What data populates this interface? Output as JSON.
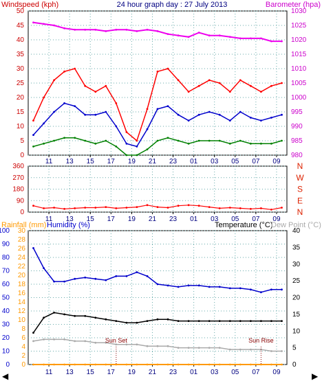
{
  "header": {
    "left": "Windspeed (kph)",
    "center": "24 hour graph day : 27 July 2013",
    "right": "Barometer (hpa)"
  },
  "colors": {
    "wind_max": "#ff0000",
    "wind_avg": "#0000cc",
    "wind_min": "#008000",
    "barometer": "#ee00ee",
    "direction": "#ff0000",
    "compass": "#dd2200",
    "rain": "#ff9900",
    "humidity": "#0000cc",
    "temperature": "#000000",
    "dew_point": "#aaaaaa",
    "sun_marker": "#880000"
  },
  "x_ticks": [
    "11",
    "13",
    "15",
    "17",
    "19",
    "21",
    "23",
    "01",
    "03",
    "05",
    "07",
    "09"
  ],
  "chart_data": [
    {
      "type": "line",
      "name": "wind-and-pressure",
      "ylabel": "Windspeed (kph)",
      "y2label": "Barometer (hpa)",
      "ylim": [
        0,
        50
      ],
      "y_ticks": [
        "0",
        "5",
        "10",
        "15",
        "20",
        "25",
        "30",
        "35",
        "40",
        "45",
        "50"
      ],
      "y2lim": [
        980,
        1030
      ],
      "y2_ticks": [
        "980",
        "985",
        "990",
        "995",
        "1000",
        "1005",
        "1010",
        "1015",
        "1020",
        "1025",
        "1030"
      ],
      "x_hours": [
        9.5,
        10.5,
        11.5,
        12.5,
        13.5,
        14.5,
        15.5,
        16.5,
        17.5,
        18.5,
        19.5,
        20.5,
        21.5,
        22.5,
        23.5,
        24.5,
        25.5,
        26.5,
        27.5,
        28.5,
        29.5,
        30.5,
        31.5,
        32.5,
        33.5
      ],
      "series": [
        {
          "key": "wind_max",
          "values": [
            12,
            20,
            26,
            29,
            30,
            24,
            22,
            24,
            18,
            8,
            5,
            16,
            29,
            30,
            26,
            22,
            24,
            26,
            25,
            22,
            26,
            24,
            22,
            24,
            25
          ]
        },
        {
          "key": "wind_avg",
          "values": [
            7,
            11,
            15,
            18,
            17,
            14,
            14,
            15,
            10,
            4,
            3,
            9,
            16,
            17,
            14,
            12,
            14,
            15,
            14,
            12,
            15,
            13,
            12,
            13,
            14
          ]
        },
        {
          "key": "wind_min",
          "values": [
            3,
            4,
            5,
            6,
            6,
            5,
            4,
            5,
            3,
            0,
            0,
            2,
            5,
            6,
            5,
            4,
            5,
            5,
            5,
            4,
            5,
            4,
            4,
            4,
            5
          ]
        },
        {
          "key": "barometer",
          "axis": "y2",
          "values": [
            1026.0,
            1025.5,
            1025.0,
            1024.0,
            1023.5,
            1023.5,
            1023.5,
            1023.0,
            1023.5,
            1023.5,
            1023.0,
            1023.5,
            1023.0,
            1022.0,
            1021.5,
            1021.0,
            1022.5,
            1021.5,
            1021.5,
            1021.0,
            1020.5,
            1020.5,
            1020.5,
            1019.5,
            1019.5
          ]
        }
      ]
    },
    {
      "type": "line",
      "name": "wind-direction",
      "ylim": [
        0,
        360
      ],
      "y_ticks": [
        "0",
        "90",
        "180",
        "270",
        "360"
      ],
      "compass_labels": [
        "N",
        "W",
        "S",
        "E",
        "N"
      ],
      "x_hours": [
        9.5,
        10.5,
        11.5,
        12.5,
        13.5,
        14.5,
        15.5,
        16.5,
        17.5,
        18.5,
        19.5,
        20.5,
        21.5,
        22.5,
        23.5,
        24.5,
        25.5,
        26.5,
        27.5,
        28.5,
        29.5,
        30.5,
        31.5,
        32.5,
        33.5
      ],
      "values": [
        50,
        30,
        35,
        25,
        30,
        35,
        35,
        40,
        30,
        35,
        40,
        55,
        40,
        35,
        50,
        55,
        50,
        40,
        30,
        35,
        30,
        25,
        30,
        20,
        35
      ]
    },
    {
      "type": "line",
      "name": "humidity-temperature",
      "title_left_rain": "Rainfall (mm)",
      "title_left_hum": "Humidity (%)",
      "title_right_temp": "Temperature (°C)",
      "title_right_dew": "Dew Point (°C)",
      "ylabel": "Humidity (%)",
      "ylim": [
        0,
        100
      ],
      "hum_ticks": [
        "0",
        "10",
        "20",
        "30",
        "40",
        "50",
        "60",
        "70",
        "80",
        "90",
        "100"
      ],
      "rain_ticks": [
        "0",
        "2",
        "4",
        "6",
        "8",
        "10",
        "12",
        "14",
        "16",
        "18",
        "20",
        "22",
        "24",
        "26",
        "28",
        "30"
      ],
      "temp_ticks": [
        "0",
        "5",
        "10",
        "15",
        "20",
        "25",
        "30",
        "35",
        "40"
      ],
      "temp_lim": [
        0,
        40
      ],
      "x_hours": [
        9.5,
        10.5,
        11.5,
        12.5,
        13.5,
        14.5,
        15.5,
        16.5,
        17.5,
        18.5,
        19.5,
        20.5,
        21.5,
        22.5,
        23.5,
        24.5,
        25.5,
        26.5,
        27.5,
        28.5,
        29.5,
        30.5,
        31.5,
        32.5,
        33.5
      ],
      "series": [
        {
          "key": "humidity",
          "values": [
            87,
            72,
            62,
            62,
            64,
            65,
            64,
            63,
            66,
            66,
            69,
            66,
            60,
            59,
            58,
            59,
            59,
            58,
            58,
            57,
            57,
            56,
            54,
            56,
            56
          ]
        },
        {
          "key": "temperature",
          "axis": "temp",
          "values": [
            9.5,
            14.0,
            15.5,
            15.0,
            14.5,
            14.5,
            14.0,
            13.5,
            13.0,
            12.5,
            12.5,
            13.0,
            13.5,
            13.5,
            13.0,
            13.0,
            13.0,
            13.0,
            13.0,
            13.0,
            13.0,
            13.0,
            13.0,
            13.0,
            13.0
          ]
        },
        {
          "key": "dew_point",
          "axis": "temp",
          "values": [
            7.0,
            7.5,
            7.5,
            7.5,
            7.0,
            7.0,
            6.5,
            6.5,
            6.0,
            6.0,
            6.0,
            5.5,
            5.5,
            5.5,
            5.0,
            5.0,
            5.0,
            5.0,
            5.0,
            4.5,
            4.5,
            4.5,
            4.5,
            4.0,
            4.0
          ]
        },
        {
          "key": "rain",
          "values": [
            0,
            0,
            0,
            0,
            0,
            0,
            0,
            0,
            0,
            0,
            0,
            0,
            0,
            0,
            0,
            0,
            0,
            0,
            0,
            0,
            0,
            0,
            0,
            0,
            0
          ]
        }
      ],
      "annotations": [
        {
          "text": "Sun Set",
          "hour": 17.5
        },
        {
          "text": "Sun Rise",
          "hour": 31.5
        }
      ]
    }
  ]
}
